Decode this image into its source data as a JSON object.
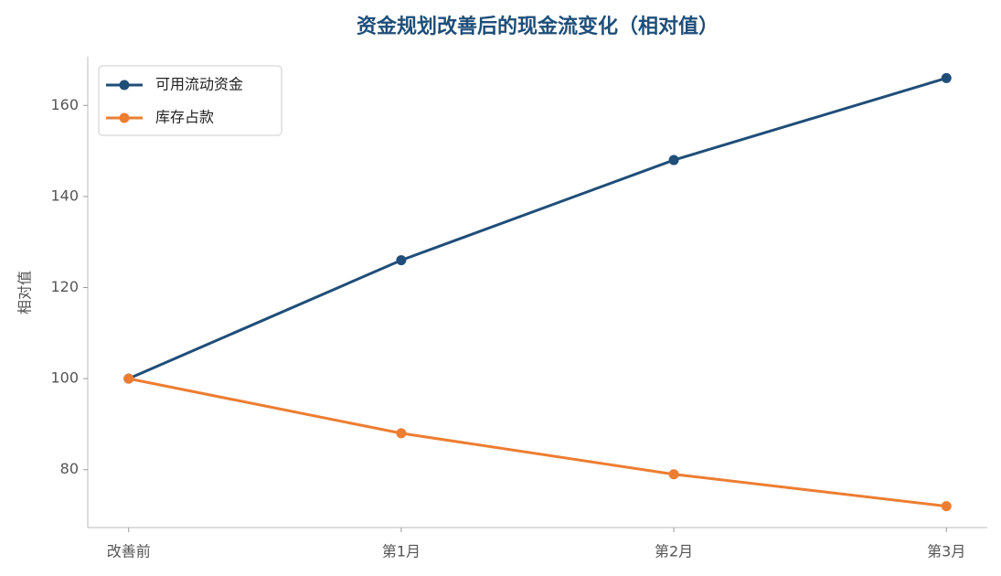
{
  "chart_data": {
    "type": "line",
    "title": "资金规划改善后的现金流变化（相对值）",
    "y_label": "相对值",
    "categories": [
      "改善前",
      "第1月",
      "第2月",
      "第3月"
    ],
    "series": [
      {
        "name": "可用流动资金",
        "color": "#1f4e79",
        "values": [
          100,
          126,
          148,
          166
        ]
      },
      {
        "name": "库存占款",
        "color": "#ed7d31",
        "values": [
          100,
          88,
          79,
          72
        ]
      }
    ],
    "ylim": [
      67.3,
      170.7
    ],
    "yticks": [
      80,
      100,
      120,
      140,
      160
    ],
    "legend": "upper left"
  }
}
